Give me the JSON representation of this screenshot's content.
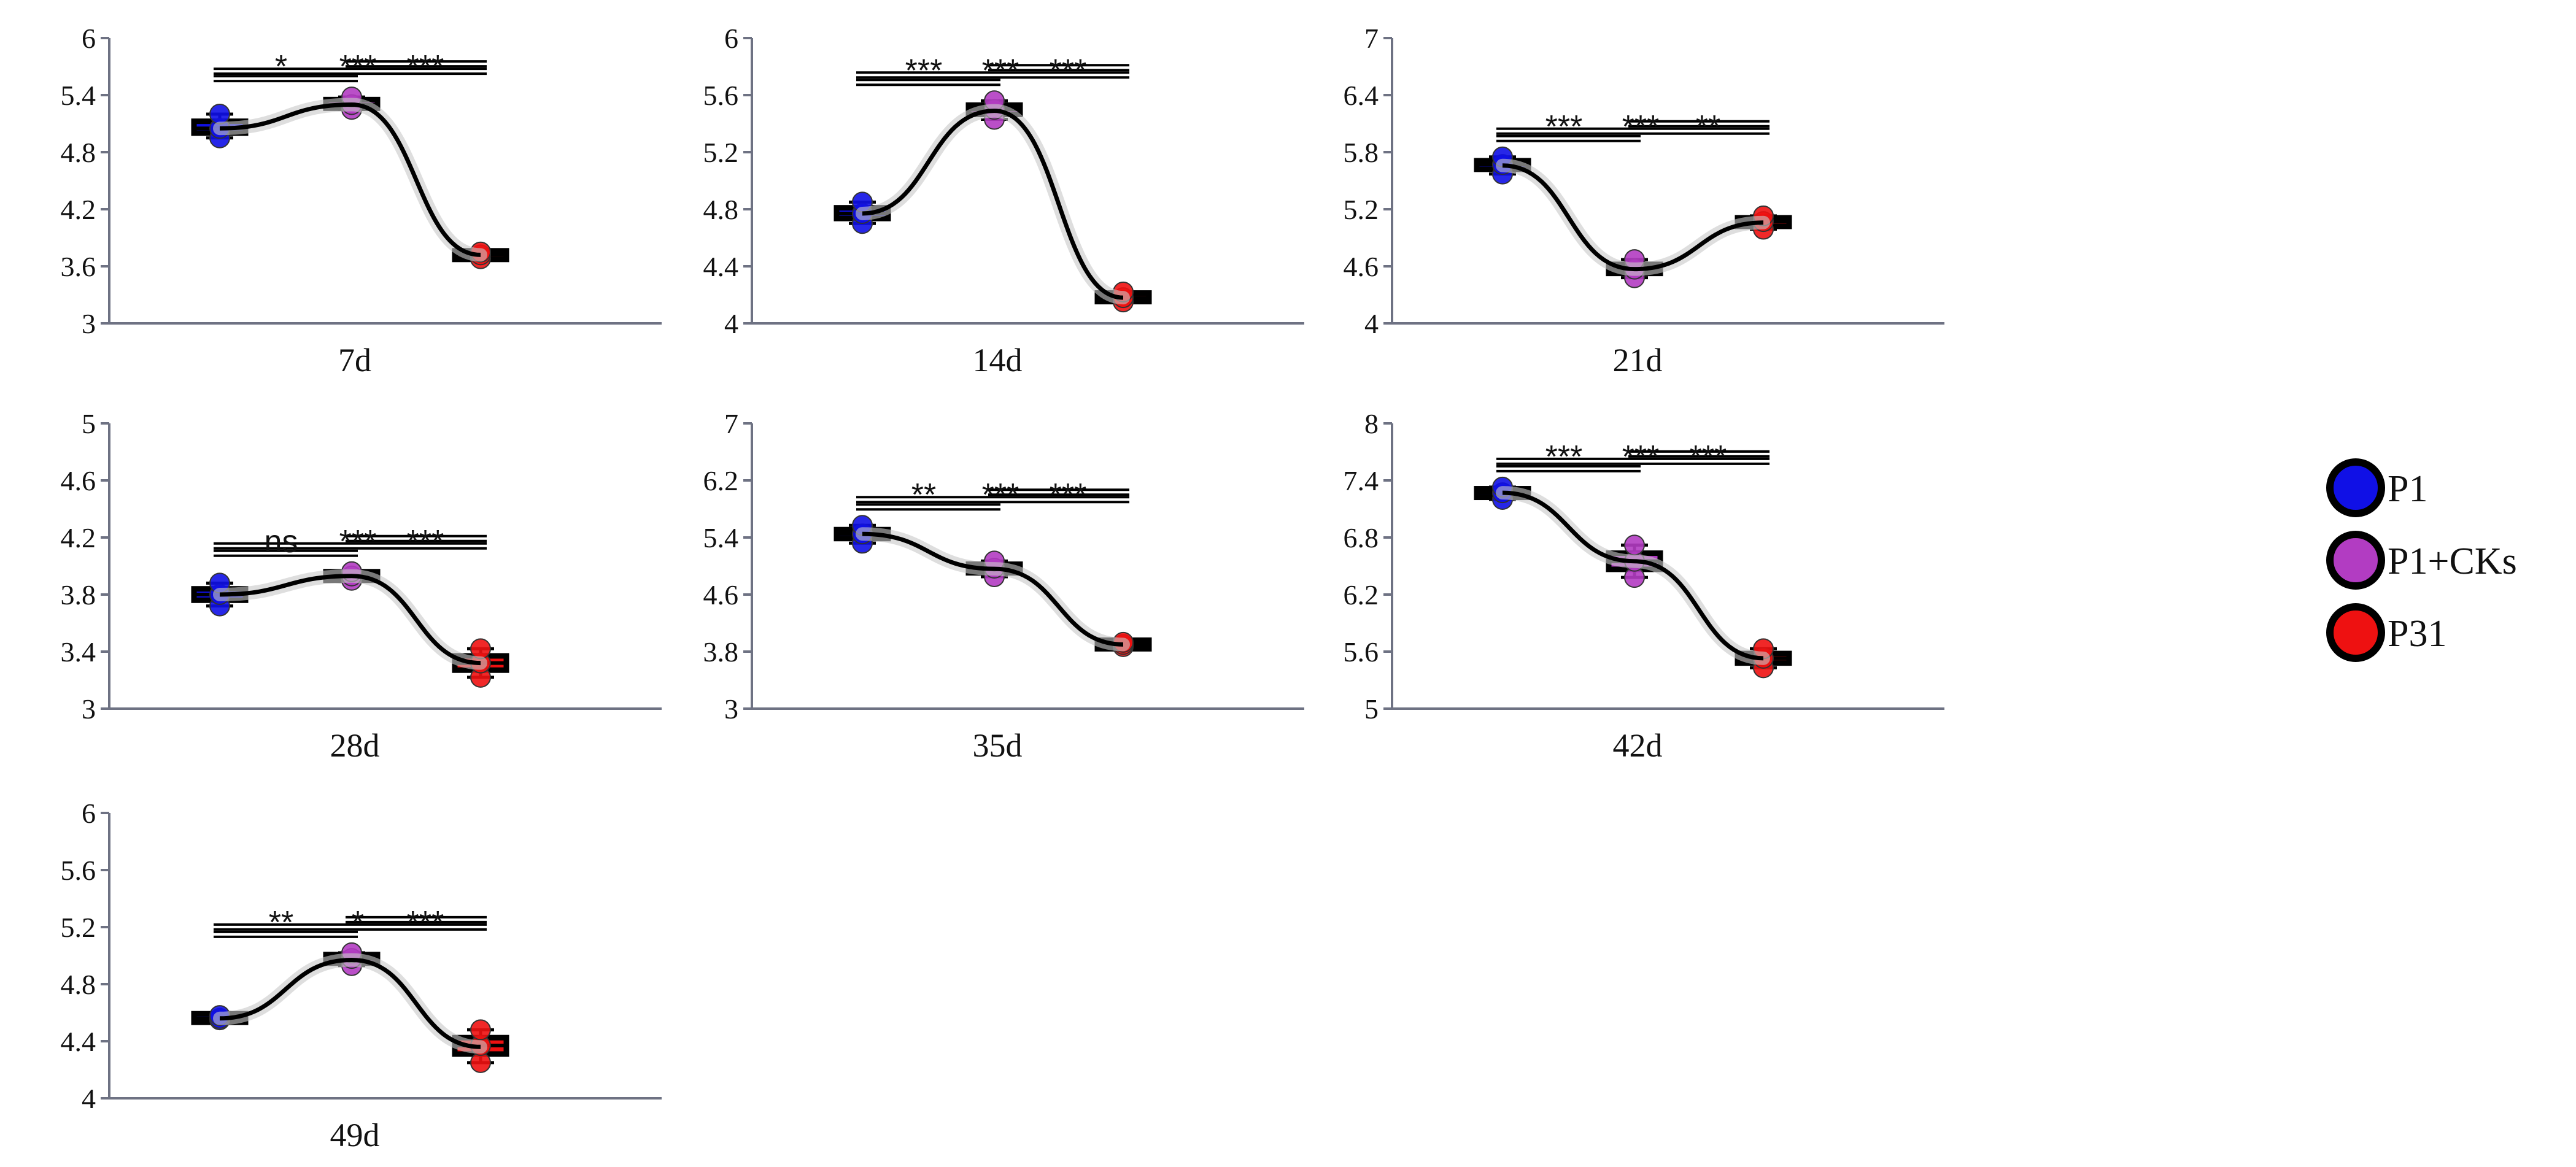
{
  "legend": [
    {
      "label": "P1",
      "color": "#1010e6"
    },
    {
      "label": "P1+CKs",
      "color": "#b23cc2"
    },
    {
      "label": "P31",
      "color": "#ee1111"
    }
  ],
  "chart_data": [
    {
      "type": "box",
      "title": "7d",
      "xlabel": "7d",
      "categories": [
        "P1",
        "P1+CKs",
        "P31"
      ],
      "ylim": [
        3,
        6
      ],
      "yticks": [
        "3",
        "3.6",
        "4.2",
        "4.8",
        "5.4",
        "6"
      ],
      "series": [
        {
          "name": "P1",
          "values": [
            4.95,
            5.05,
            5.2
          ]
        },
        {
          "name": "P1+CKs",
          "values": [
            5.25,
            5.3,
            5.38
          ]
        },
        {
          "name": "P31",
          "values": [
            3.68,
            3.72,
            3.75
          ]
        }
      ],
      "means": [
        5.05,
        5.3,
        3.72
      ],
      "annotations": [
        {
          "text": "*",
          "pair": [
            0,
            1
          ]
        },
        {
          "text": "***",
          "pair": [
            0,
            2
          ]
        },
        {
          "text": "***",
          "pair": [
            1,
            2
          ]
        }
      ]
    },
    {
      "type": "box",
      "title": "14d",
      "xlabel": "14d",
      "categories": [
        "P1",
        "P1+CKs",
        "P31"
      ],
      "ylim": [
        4,
        6
      ],
      "yticks": [
        "4",
        "4.4",
        "4.8",
        "5.2",
        "5.6",
        "6"
      ],
      "series": [
        {
          "name": "P1",
          "values": [
            4.7,
            4.77,
            4.85
          ]
        },
        {
          "name": "P1+CKs",
          "values": [
            5.43,
            5.5,
            5.56
          ]
        },
        {
          "name": "P31",
          "values": [
            4.15,
            4.18,
            4.22
          ]
        }
      ],
      "means": [
        4.77,
        5.49,
        4.18
      ],
      "annotations": [
        {
          "text": "***",
          "pair": [
            0,
            1
          ]
        },
        {
          "text": "***",
          "pair": [
            0,
            2
          ]
        },
        {
          "text": "***",
          "pair": [
            1,
            2
          ]
        }
      ]
    },
    {
      "type": "box",
      "title": "21d",
      "xlabel": "21d",
      "categories": [
        "P1",
        "P1+CKs",
        "P31"
      ],
      "ylim": [
        4,
        7
      ],
      "yticks": [
        "4",
        "4.6",
        "5.2",
        "5.8",
        "6.4",
        "7"
      ],
      "series": [
        {
          "name": "P1",
          "values": [
            5.57,
            5.67,
            5.75
          ]
        },
        {
          "name": "P1+CKs",
          "values": [
            4.48,
            4.57,
            4.67
          ]
        },
        {
          "name": "P31",
          "values": [
            4.99,
            5.07,
            5.13
          ]
        }
      ],
      "means": [
        5.66,
        4.57,
        5.06
      ],
      "annotations": [
        {
          "text": "***",
          "pair": [
            0,
            1
          ]
        },
        {
          "text": "***",
          "pair": [
            0,
            2
          ]
        },
        {
          "text": "**",
          "pair": [
            1,
            2
          ]
        }
      ]
    },
    {
      "type": "box",
      "title": "28d",
      "xlabel": "28d",
      "categories": [
        "P1",
        "P1+CKs",
        "P31"
      ],
      "ylim": [
        3,
        5
      ],
      "yticks": [
        "3",
        "3.4",
        "3.8",
        "4.2",
        "4.6",
        "5"
      ],
      "series": [
        {
          "name": "P1",
          "values": [
            3.72,
            3.8,
            3.88
          ]
        },
        {
          "name": "P1+CKs",
          "values": [
            3.9,
            3.93,
            3.96
          ]
        },
        {
          "name": "P31",
          "values": [
            3.22,
            3.32,
            3.42
          ]
        }
      ],
      "means": [
        3.8,
        3.93,
        3.32
      ],
      "annotations": [
        {
          "text": "ns",
          "pair": [
            0,
            1
          ]
        },
        {
          "text": "***",
          "pair": [
            0,
            2
          ]
        },
        {
          "text": "***",
          "pair": [
            1,
            2
          ]
        }
      ]
    },
    {
      "type": "box",
      "title": "35d",
      "xlabel": "35d",
      "categories": [
        "P1",
        "P1+CKs",
        "P31"
      ],
      "ylim": [
        3,
        7
      ],
      "yticks": [
        "3",
        "3.8",
        "4.6",
        "5.4",
        "6.2",
        "7"
      ],
      "series": [
        {
          "name": "P1",
          "values": [
            5.32,
            5.45,
            5.57
          ]
        },
        {
          "name": "P1+CKs",
          "values": [
            4.85,
            4.97,
            5.07
          ]
        },
        {
          "name": "P31",
          "values": [
            3.87,
            3.9,
            3.93
          ]
        }
      ],
      "means": [
        5.45,
        4.96,
        3.9
      ],
      "annotations": [
        {
          "text": "**",
          "pair": [
            0,
            1
          ]
        },
        {
          "text": "***",
          "pair": [
            0,
            2
          ]
        },
        {
          "text": "***",
          "pair": [
            1,
            2
          ]
        }
      ]
    },
    {
      "type": "box",
      "title": "42d",
      "xlabel": "42d",
      "categories": [
        "P1",
        "P1+CKs",
        "P31"
      ],
      "ylim": [
        5,
        8
      ],
      "yticks": [
        "5",
        "5.6",
        "6.2",
        "6.8",
        "7.4",
        "8"
      ],
      "series": [
        {
          "name": "P1",
          "values": [
            7.2,
            7.27,
            7.33
          ]
        },
        {
          "name": "P1+CKs",
          "values": [
            6.38,
            6.55,
            6.72
          ]
        },
        {
          "name": "P31",
          "values": [
            5.43,
            5.53,
            5.63
          ]
        }
      ],
      "means": [
        7.27,
        6.55,
        5.53
      ],
      "annotations": [
        {
          "text": "***",
          "pair": [
            0,
            1
          ]
        },
        {
          "text": "***",
          "pair": [
            0,
            2
          ]
        },
        {
          "text": "***",
          "pair": [
            1,
            2
          ]
        }
      ]
    },
    {
      "type": "box",
      "title": "49d",
      "xlabel": "49d",
      "categories": [
        "P1",
        "P1+CKs",
        "P31"
      ],
      "ylim": [
        4,
        6
      ],
      "yticks": [
        "4",
        "4.4",
        "4.8",
        "5.2",
        "5.6",
        "6"
      ],
      "series": [
        {
          "name": "P1",
          "values": [
            4.55,
            4.56,
            4.58
          ]
        },
        {
          "name": "P1+CKs",
          "values": [
            4.93,
            4.98,
            5.02
          ]
        },
        {
          "name": "P31",
          "values": [
            4.25,
            4.37,
            4.48
          ]
        }
      ],
      "means": [
        4.56,
        4.97,
        4.36
      ],
      "annotations": [
        {
          "text": "**",
          "pair": [
            0,
            1
          ]
        },
        {
          "text": "*",
          "pair": [
            0,
            2
          ]
        },
        {
          "text": "***",
          "pair": [
            1,
            2
          ]
        }
      ]
    }
  ]
}
